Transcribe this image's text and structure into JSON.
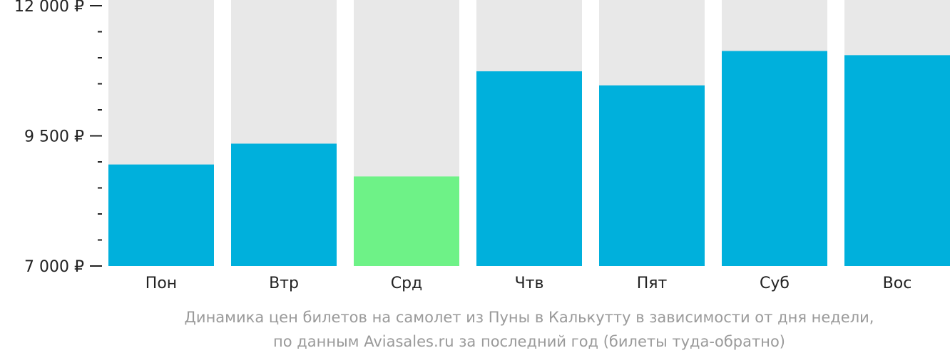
{
  "chart_data": {
    "type": "bar",
    "categories": [
      "Пон",
      "Втр",
      "Срд",
      "Чтв",
      "Пят",
      "Суб",
      "Вос"
    ],
    "values": [
      8950,
      9350,
      8720,
      10740,
      10470,
      11130,
      11050
    ],
    "ylim": [
      7000,
      12000
    ],
    "yticks": [
      {
        "value": 12000,
        "label": "12 000 ₽"
      },
      {
        "value": 9500,
        "label": "9 500 ₽"
      },
      {
        "value": 7000,
        "label": "7 000 ₽"
      }
    ],
    "minor_tick_step": 500,
    "highlight_index": 2,
    "colors": {
      "bar": "#00b0dc",
      "highlight": "#6ef287",
      "background_bar": "#e8e8e8",
      "axis": "#222222"
    },
    "grid": false,
    "legend": "none"
  },
  "caption": {
    "line1": "Динамика цен билетов на самолет из Пуны в Калькутту в зависимости от дня недели,",
    "line2": "по данным Aviasales.ru за последний год (билеты туда-обратно)"
  }
}
